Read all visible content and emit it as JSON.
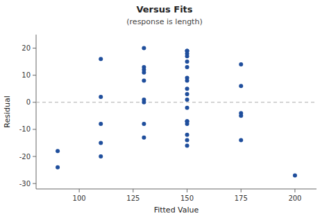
{
  "chart_data": {
    "type": "scatter",
    "title": "Versus Fits",
    "subtitle": "(response is length)",
    "x_label": "Fitted Value",
    "y_label": "Residual",
    "xlim": [
      80,
      210
    ],
    "ylim": [
      -32,
      25
    ],
    "xticks": [
      100,
      125,
      150,
      175,
      200
    ],
    "yticks": [
      -30,
      -20,
      -10,
      0,
      10,
      20
    ],
    "color": "#1f4e9c",
    "grid": false,
    "hline": {
      "y": 0,
      "color": "#aaaaaa",
      "line_style": "dashed"
    },
    "x": [
      90,
      90,
      110,
      110,
      110,
      110,
      110,
      130,
      130,
      130,
      130,
      130,
      130,
      130,
      130,
      130,
      150,
      150,
      150,
      150,
      150,
      150,
      150,
      150,
      150,
      150,
      150,
      150,
      150,
      150,
      150,
      150,
      150,
      150,
      175,
      175,
      175,
      175,
      175,
      200
    ],
    "y": [
      -18,
      -24,
      16,
      2,
      -8,
      -15,
      -20,
      20,
      13,
      12,
      11,
      8,
      1,
      0,
      -8,
      -13,
      -14,
      19,
      19,
      18,
      17,
      15,
      13,
      9,
      8,
      5,
      3,
      1,
      -2,
      -7,
      -7,
      -8,
      -12,
      -16,
      14,
      6,
      -4,
      -5,
      -14,
      -27
    ]
  }
}
